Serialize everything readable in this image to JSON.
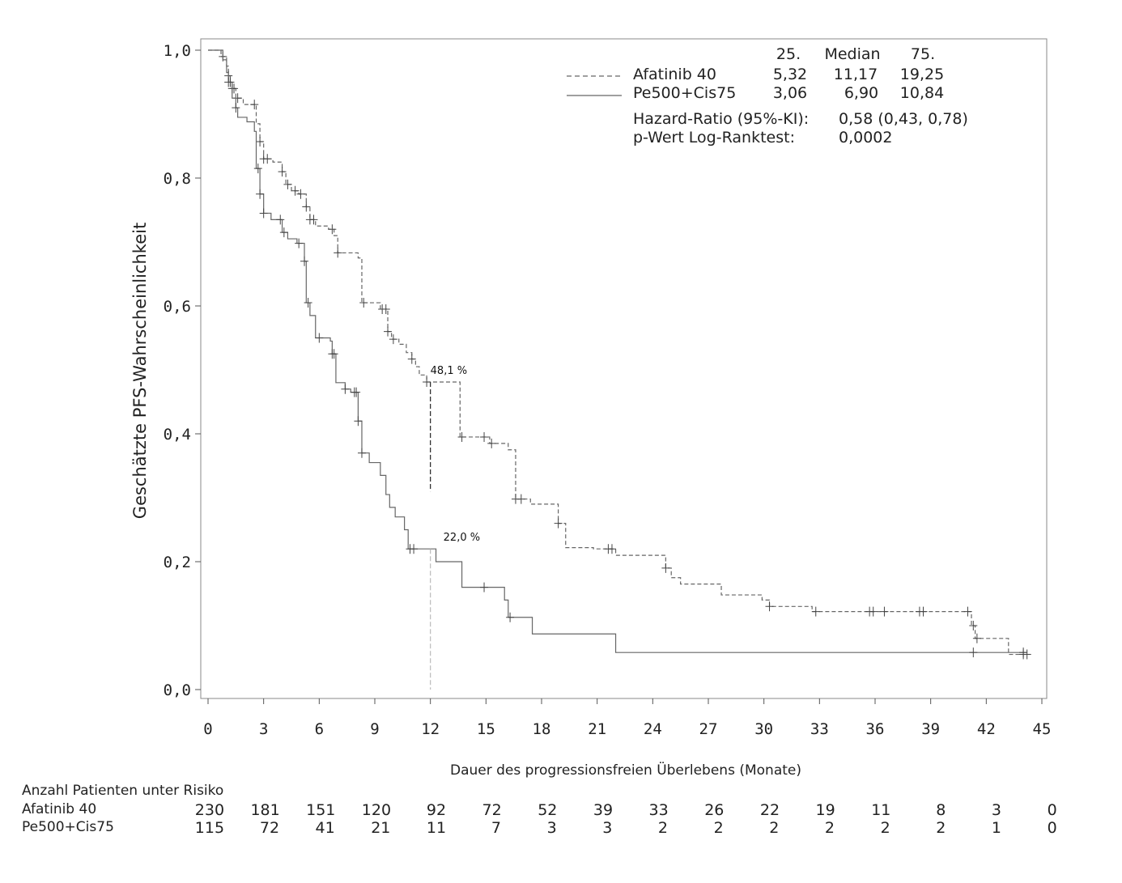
{
  "chart_data": {
    "type": "line",
    "ylabel": "Geschätzte PFS-Wahrscheinlichkeit",
    "xlabel": "Dauer des progressionsfreien Überlebens (Monate)",
    "xlim": [
      0,
      45
    ],
    "ylim": [
      0,
      1
    ],
    "x_ticks": [
      0,
      3,
      6,
      9,
      12,
      15,
      18,
      21,
      24,
      27,
      30,
      33,
      36,
      39,
      42,
      45
    ],
    "x_tick_labels": [
      "0",
      "3",
      "6",
      "9",
      "12",
      "15",
      "18",
      "21",
      "24",
      "27",
      "30",
      "33",
      "36",
      "39",
      "42",
      "45"
    ],
    "y_ticks": [
      0,
      0.2,
      0.4,
      0.6,
      0.8,
      1.0
    ],
    "y_tick_labels": [
      "0,0",
      "0,2",
      "0,4",
      "0,6",
      "0,8",
      "1,0"
    ],
    "grid": false,
    "legend_position": "top-right",
    "legend": {
      "col_headers": [
        "25.",
        "Median",
        "75."
      ],
      "rows": [
        {
          "name": "Afatinib 40",
          "style": "dashed",
          "q25": "5,32",
          "median": "11,17",
          "q75": "19,25"
        },
        {
          "name": "Pe500+Cis75",
          "style": "solid",
          "q25": "3,06",
          "median": "6,90",
          "q75": "10,84"
        }
      ],
      "hr_label": "Hazard-Ratio (95%-KI):",
      "hr_value": "0,58 (0,43, 0,78)",
      "p_label": "p-Wert Log-Ranktest:",
      "p_value": "0,0002"
    },
    "annotations": [
      {
        "text": "48,1 %",
        "x": 12,
        "y": 0.481
      },
      {
        "text": "22,0 %",
        "x": 12,
        "y": 0.22
      }
    ],
    "series": [
      {
        "name": "Afatinib 40",
        "style": "dashed",
        "color": "#666666",
        "steps": [
          [
            0,
            1.0
          ],
          [
            0.7,
            0.99
          ],
          [
            1.0,
            0.975
          ],
          [
            1.1,
            0.96
          ],
          [
            1.2,
            0.95
          ],
          [
            1.3,
            0.94
          ],
          [
            1.5,
            0.925
          ],
          [
            1.9,
            0.915
          ],
          [
            2.6,
            0.885
          ],
          [
            2.8,
            0.857
          ],
          [
            3.0,
            0.83
          ],
          [
            3.5,
            0.825
          ],
          [
            4.0,
            0.81
          ],
          [
            4.2,
            0.79
          ],
          [
            4.5,
            0.78
          ],
          [
            4.9,
            0.775
          ],
          [
            5.3,
            0.755
          ],
          [
            5.5,
            0.735
          ],
          [
            5.8,
            0.725
          ],
          [
            6.5,
            0.72
          ],
          [
            6.8,
            0.71
          ],
          [
            7.0,
            0.683
          ],
          [
            8.1,
            0.675
          ],
          [
            8.3,
            0.605
          ],
          [
            9.3,
            0.595
          ],
          [
            9.7,
            0.56
          ],
          [
            9.9,
            0.548
          ],
          [
            10.3,
            0.54
          ],
          [
            10.7,
            0.527
          ],
          [
            11.0,
            0.517
          ],
          [
            11.2,
            0.505
          ],
          [
            11.4,
            0.492
          ],
          [
            11.8,
            0.481
          ],
          [
            13.6,
            0.395
          ],
          [
            15.2,
            0.385
          ],
          [
            16.2,
            0.375
          ],
          [
            16.6,
            0.298
          ],
          [
            17.4,
            0.29
          ],
          [
            18.9,
            0.26
          ],
          [
            19.3,
            0.222
          ],
          [
            20.8,
            0.22
          ],
          [
            22.0,
            0.21
          ],
          [
            24.7,
            0.19
          ],
          [
            25.0,
            0.175
          ],
          [
            25.5,
            0.165
          ],
          [
            27.7,
            0.148
          ],
          [
            29.9,
            0.14
          ],
          [
            30.3,
            0.13
          ],
          [
            32.6,
            0.122
          ],
          [
            41.2,
            0.1
          ],
          [
            41.4,
            0.08
          ],
          [
            43.2,
            0.055
          ],
          [
            44.2,
            0.055
          ]
        ],
        "censor": [
          0.8,
          1.1,
          1.2,
          1.3,
          1.4,
          1.6,
          2.5,
          2.8,
          3.0,
          3.2,
          4.0,
          4.3,
          4.7,
          5.0,
          5.3,
          5.5,
          5.7,
          6.7,
          7.0,
          8.4,
          9.4,
          9.6,
          9.7,
          10.0,
          11.0,
          11.8,
          13.7,
          14.9,
          15.3,
          16.6,
          16.9,
          18.9,
          21.6,
          21.8,
          24.7,
          30.3,
          32.8,
          35.7,
          35.9,
          36.5,
          38.4,
          38.6,
          41.0,
          41.3,
          41.5,
          44.0,
          44.2
        ]
      },
      {
        "name": "Pe500+Cis75",
        "style": "solid",
        "color": "#666666",
        "steps": [
          [
            0,
            1.0
          ],
          [
            0.8,
            0.985
          ],
          [
            1.0,
            0.965
          ],
          [
            1.1,
            0.95
          ],
          [
            1.3,
            0.925
          ],
          [
            1.5,
            0.91
          ],
          [
            1.6,
            0.895
          ],
          [
            2.1,
            0.888
          ],
          [
            2.5,
            0.873
          ],
          [
            2.6,
            0.815
          ],
          [
            2.8,
            0.775
          ],
          [
            3.0,
            0.745
          ],
          [
            3.4,
            0.735
          ],
          [
            4.0,
            0.715
          ],
          [
            4.3,
            0.705
          ],
          [
            4.8,
            0.698
          ],
          [
            5.2,
            0.67
          ],
          [
            5.3,
            0.605
          ],
          [
            5.5,
            0.585
          ],
          [
            5.8,
            0.55
          ],
          [
            6.6,
            0.545
          ],
          [
            6.7,
            0.525
          ],
          [
            6.9,
            0.48
          ],
          [
            7.4,
            0.47
          ],
          [
            7.7,
            0.465
          ],
          [
            8.1,
            0.42
          ],
          [
            8.3,
            0.37
          ],
          [
            8.7,
            0.355
          ],
          [
            9.3,
            0.335
          ],
          [
            9.6,
            0.305
          ],
          [
            9.8,
            0.285
          ],
          [
            10.1,
            0.27
          ],
          [
            10.6,
            0.25
          ],
          [
            10.8,
            0.22
          ],
          [
            12.3,
            0.2
          ],
          [
            13.7,
            0.16
          ],
          [
            16.0,
            0.14
          ],
          [
            16.2,
            0.113
          ],
          [
            17.5,
            0.087
          ],
          [
            22.0,
            0.058
          ],
          [
            44.2,
            0.058
          ]
        ],
        "censor": [
          1.1,
          1.2,
          1.5,
          2.7,
          2.8,
          3.0,
          3.9,
          4.1,
          4.9,
          5.2,
          5.4,
          6.0,
          6.7,
          6.8,
          7.4,
          7.9,
          8.0,
          8.1,
          8.3,
          10.9,
          11.1,
          14.9,
          16.3,
          41.3,
          44.0
        ]
      }
    ]
  },
  "risk_table": {
    "title": "Anzahl Patienten unter Risiko",
    "rows": [
      {
        "name": "Afatinib 40",
        "values": [
          "230",
          "181",
          "151",
          "120",
          "92",
          "72",
          "52",
          "39",
          "33",
          "26",
          "22",
          "19",
          "11",
          "8",
          "3",
          "0"
        ]
      },
      {
        "name": "Pe500+Cis75",
        "values": [
          "115",
          "72",
          "41",
          "21",
          "11",
          "7",
          "3",
          "3",
          "2",
          "2",
          "2",
          "2",
          "2",
          "2",
          "1",
          "0"
        ]
      }
    ]
  }
}
